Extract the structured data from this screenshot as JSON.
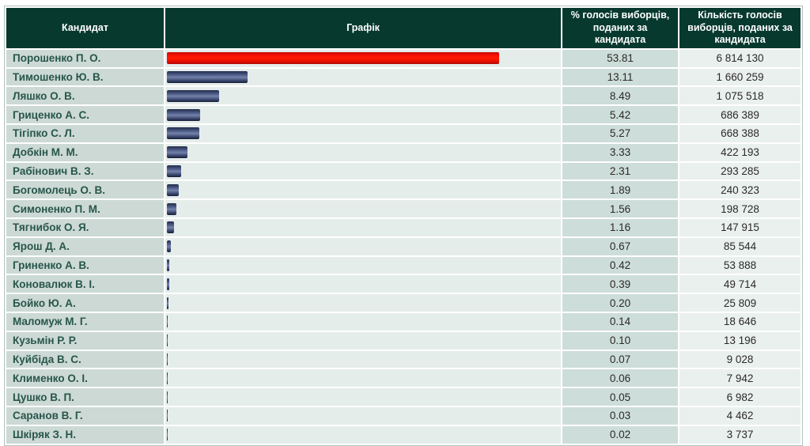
{
  "header": {
    "candidate": "Кандидат",
    "chart": "Графік",
    "percent": "% голосів виборців, поданих за кандидата",
    "votes": "Кількість голосів виборців, поданих за кандидата"
  },
  "rows": [
    {
      "candidate": "Порошенко П. О.",
      "percent": "53.81",
      "votes": "6 814 130",
      "bar": "red"
    },
    {
      "candidate": "Тимошенко Ю. В.",
      "percent": "13.11",
      "votes": "1 660 259",
      "bar": "navy"
    },
    {
      "candidate": "Ляшко О. В.",
      "percent": "8.49",
      "votes": "1 075 518",
      "bar": "navy"
    },
    {
      "candidate": "Гриценко А. С.",
      "percent": "5.42",
      "votes": "686 389",
      "bar": "navy"
    },
    {
      "candidate": "Тігіпко С. Л.",
      "percent": "5.27",
      "votes": "668 388",
      "bar": "navy"
    },
    {
      "candidate": "Добкін М. М.",
      "percent": "3.33",
      "votes": "422 193",
      "bar": "navy"
    },
    {
      "candidate": "Рабінович В. З.",
      "percent": "2.31",
      "votes": "293 285",
      "bar": "navy"
    },
    {
      "candidate": "Богомолець О. В.",
      "percent": "1.89",
      "votes": "240 323",
      "bar": "navy"
    },
    {
      "candidate": "Симоненко П. М.",
      "percent": "1.56",
      "votes": "198 728",
      "bar": "navy"
    },
    {
      "candidate": "Тягнибок О. Я.",
      "percent": "1.16",
      "votes": "147 915",
      "bar": "navy"
    },
    {
      "candidate": "Ярош Д. А.",
      "percent": "0.67",
      "votes": "85 544",
      "bar": "navy"
    },
    {
      "candidate": "Гриненко А. В.",
      "percent": "0.42",
      "votes": "53 888",
      "bar": "navy"
    },
    {
      "candidate": "Коновалюк В. І.",
      "percent": "0.39",
      "votes": "49 714",
      "bar": "navy"
    },
    {
      "candidate": "Бойко Ю. А.",
      "percent": "0.20",
      "votes": "25 809",
      "bar": "navy"
    },
    {
      "candidate": "Маломуж М. Г.",
      "percent": "0.14",
      "votes": "18 646",
      "bar": "navy"
    },
    {
      "candidate": "Кузьмін Р. Р.",
      "percent": "0.10",
      "votes": "13 196",
      "bar": "navy"
    },
    {
      "candidate": "Куйбіда В. С.",
      "percent": "0.07",
      "votes": "9 028",
      "bar": "navy"
    },
    {
      "candidate": "Клименко О. І.",
      "percent": "0.06",
      "votes": "7 942",
      "bar": "navy"
    },
    {
      "candidate": "Цушко В. П.",
      "percent": "0.05",
      "votes": "6 982",
      "bar": "navy"
    },
    {
      "candidate": "Саранов В. Г.",
      "percent": "0.03",
      "votes": "4 462",
      "bar": "navy"
    },
    {
      "candidate": "Шкіряк З. Н.",
      "percent": "0.02",
      "votes": "3 737",
      "bar": "navy"
    }
  ],
  "colors": {
    "header_bg": "#07392f",
    "header_text": "#ffffff",
    "candidate_cell_bg": "#ccd9d5",
    "candidate_text": "#28564a",
    "chart_cell_bg": "#e5edeb",
    "percent_cell_bg": "#cdddd9",
    "votes_cell_bg": "#e9f0ee",
    "bar_leader": "#ff1b05",
    "bar_default": "#4d5e89",
    "table_border": "#b2c2be"
  },
  "chart_data": {
    "type": "bar",
    "orientation": "horizontal",
    "title": "Графік",
    "categories": [
      "Порошенко П. О.",
      "Тимошенко Ю. В.",
      "Ляшко О. В.",
      "Гриценко А. С.",
      "Тігіпко С. Л.",
      "Добкін М. М.",
      "Рабінович В. З.",
      "Богомолець О. В.",
      "Симоненко П. М.",
      "Тягнибок О. Я.",
      "Ярош Д. А.",
      "Гриненко А. В.",
      "Коновалюк В. І.",
      "Бойко Ю. А.",
      "Маломуж М. Г.",
      "Кузьмін Р. Р.",
      "Куйбіда В. С.",
      "Клименко О. І.",
      "Цушко В. П.",
      "Саранов В. Г.",
      "Шкіряк З. Н."
    ],
    "series": [
      {
        "name": "% голосів виборців, поданих за кандидата",
        "values": [
          53.81,
          13.11,
          8.49,
          5.42,
          5.27,
          3.33,
          2.31,
          1.89,
          1.56,
          1.16,
          0.67,
          0.42,
          0.39,
          0.2,
          0.14,
          0.1,
          0.07,
          0.06,
          0.05,
          0.03,
          0.02
        ]
      },
      {
        "name": "Кількість голосів виборців, поданих за кандидата",
        "values": [
          6814130,
          1660259,
          1075518,
          686389,
          668388,
          422193,
          293285,
          240323,
          198728,
          147915,
          85544,
          53888,
          49714,
          25809,
          18646,
          13196,
          9028,
          7942,
          6982,
          4462,
          3737
        ]
      }
    ],
    "xlim": [
      0,
      64
    ],
    "grid": false,
    "legend": "none",
    "bar_color_leader": "#ff1b05",
    "bar_color_default": "#4d5e89"
  }
}
